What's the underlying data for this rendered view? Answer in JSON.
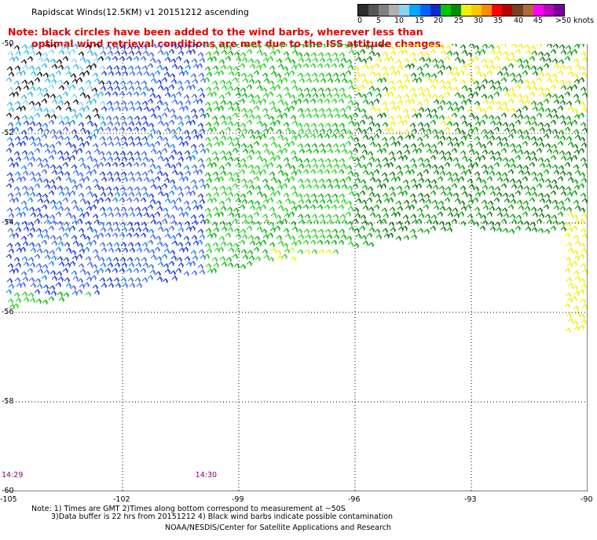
{
  "header": {
    "title": "Rapidscat Winds(12.5KM) v1 20151212 ascending",
    "note_line1": "Note: black circles have been added to the wind barbs, wherever less than",
    "note_line2": "optimal wind retrieval conditions are met due to the ISS attitude changes."
  },
  "colorbar": {
    "labels": [
      "0",
      "5",
      "10",
      "15",
      "20",
      "25",
      "30",
      "35",
      "40",
      "45",
      ">50 knots"
    ],
    "colors": [
      "#2b2b2b",
      "#555555",
      "#808080",
      "#b0b0b0",
      "#8bd3f0",
      "#00a8ff",
      "#0064ff",
      "#1428c8",
      "#00c800",
      "#008c00",
      "#f0f000",
      "#ffc800",
      "#ff8c00",
      "#ff0000",
      "#b40000",
      "#784020",
      "#b06a3a",
      "#ff00ff",
      "#c000c0",
      "#7800a0"
    ]
  },
  "map": {
    "lat_labels": [
      "-50",
      "-52",
      "-54",
      "-56",
      "-58",
      "-60"
    ],
    "lon_labels": [
      "-105",
      "-102",
      "-99",
      "-96",
      "-93",
      "-90"
    ],
    "lat_values": [
      -50,
      -52,
      -54,
      -56,
      -58,
      -60
    ],
    "lon_values": [
      -105,
      -102,
      -99,
      -96,
      -93,
      -90
    ],
    "time_labels": [
      {
        "text": "14:29",
        "lon": -105
      },
      {
        "text": "14:30",
        "lon": -100
      }
    ]
  },
  "footer": {
    "line1": "Note: 1) Times are GMT 2)Times along bottom correspond to measurement at ~50S",
    "line2": "3)Data buffer is 22 hrs from 20151212 4) Black wind barbs indicate possible contamination",
    "line3": "NOAA/NESDIS/Center for Satellite Applications and Research"
  }
}
